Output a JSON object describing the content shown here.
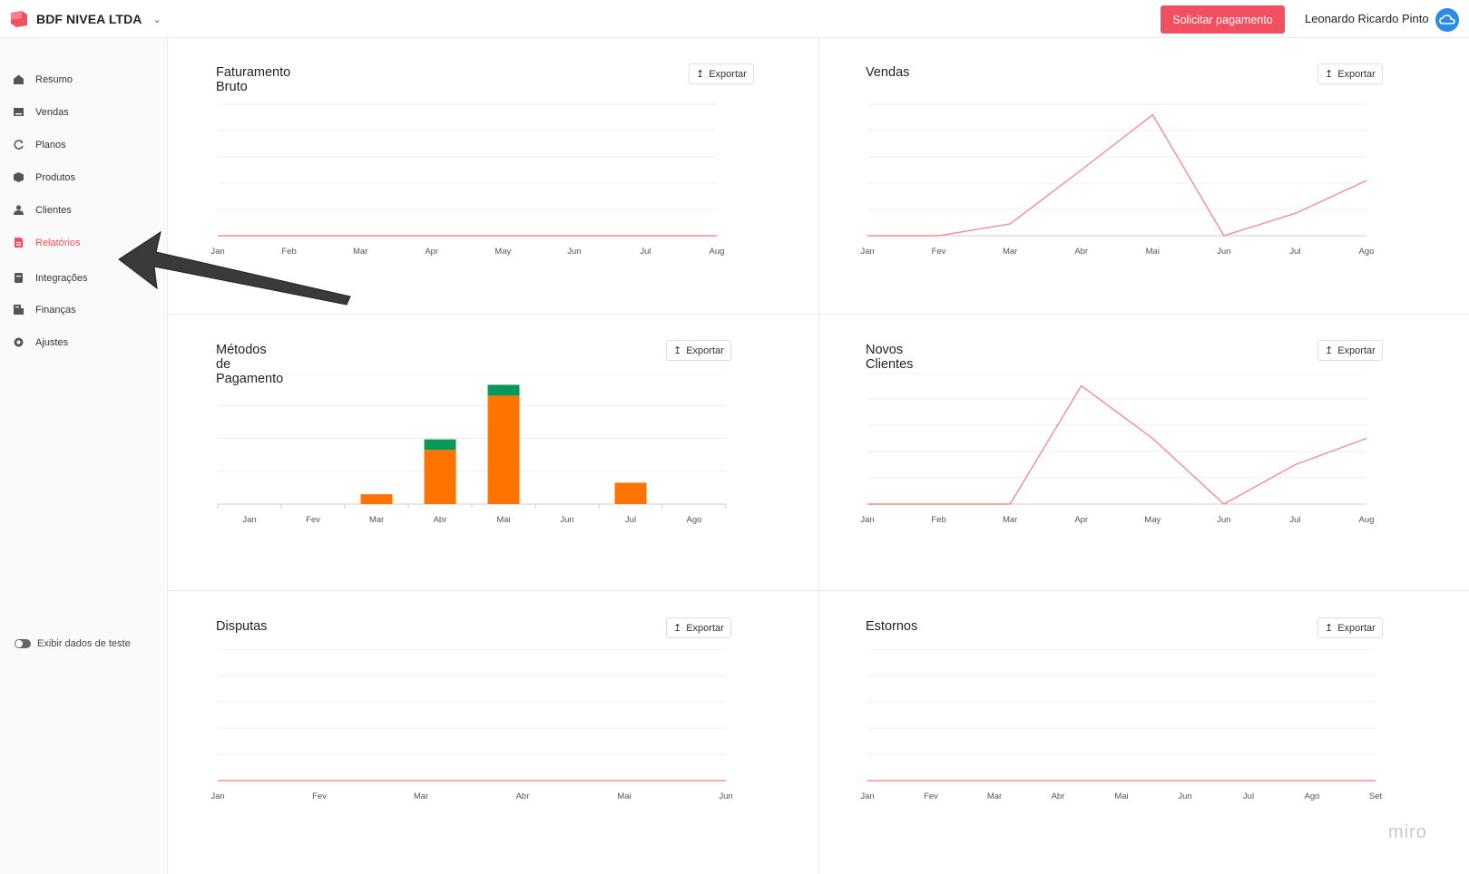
{
  "header": {
    "company": "BDF NIVEA LTDA",
    "request_button": "Solicitar pagamento",
    "user_name": "Leonardo Ricardo Pinto"
  },
  "sidebar": {
    "items": [
      {
        "label": "Resumo",
        "icon": "home-icon"
      },
      {
        "label": "Vendas",
        "icon": "sales-icon"
      },
      {
        "label": "Planos",
        "icon": "refresh-icon"
      },
      {
        "label": "Produtos",
        "icon": "box-icon"
      },
      {
        "label": "Clientes",
        "icon": "users-icon"
      },
      {
        "label": "Relatórios",
        "icon": "report-icon",
        "active": true
      },
      {
        "label": "Integrações",
        "icon": "integration-icon"
      },
      {
        "label": "Finanças",
        "icon": "finance-icon"
      },
      {
        "label": "Ajustes",
        "icon": "settings-icon"
      }
    ],
    "test_toggle_label": "Exibir dados de teste"
  },
  "export_label": "Exportar",
  "colors": {
    "accent": "#f25060",
    "line": "#f98c8c",
    "bar_orange": "#ff7300",
    "bar_green": "#0a9858"
  },
  "watermark": "miro",
  "chart_data": [
    {
      "id": "faturamento",
      "type": "line",
      "title": "Faturamento Bruto",
      "categories": [
        "Jan",
        "Feb",
        "Mar",
        "Apr",
        "May",
        "Jun",
        "Jul",
        "Aug"
      ],
      "series": [
        {
          "values": [
            0,
            0,
            0,
            0,
            0,
            0,
            0,
            0
          ]
        }
      ],
      "ylim": [
        0,
        5
      ],
      "grid": true
    },
    {
      "id": "vendas",
      "type": "line",
      "title": "Vendas",
      "categories": [
        "Jan",
        "Fev",
        "Mar",
        "Abr",
        "Mai",
        "Jun",
        "Jul",
        "Ago"
      ],
      "series": [
        {
          "values": [
            0,
            0,
            0.45,
            2.5,
            4.6,
            0,
            0.85,
            2.1
          ]
        }
      ],
      "ylim": [
        0,
        5
      ],
      "grid": true
    },
    {
      "id": "metodos",
      "type": "bar",
      "title": "Métodos de Pagamento",
      "categories": [
        "Jan",
        "Fev",
        "Mar",
        "Abr",
        "Mai",
        "Jun",
        "Jul",
        "Ago"
      ],
      "series": [
        {
          "values": [
            0,
            0,
            0.3,
            1.65,
            3.3,
            0,
            0.65,
            0
          ]
        },
        {
          "values": [
            0,
            0,
            0,
            0.32,
            0.33,
            0,
            0,
            0
          ]
        }
      ],
      "ylim": [
        0,
        4
      ],
      "grid": true
    },
    {
      "id": "novos",
      "type": "line",
      "title": "Novos Clientes",
      "categories": [
        "Jan",
        "Feb",
        "Mar",
        "Apr",
        "May",
        "Jun",
        "Jul",
        "Aug"
      ],
      "series": [
        {
          "values": [
            0,
            0,
            0,
            4.5,
            2.5,
            0,
            1.5,
            2.5
          ]
        }
      ],
      "ylim": [
        0,
        5
      ],
      "grid": true
    },
    {
      "id": "disputas",
      "type": "line",
      "title": "Disputas",
      "categories": [
        "Jan",
        "Fev",
        "Mar",
        "Abr",
        "Mai",
        "Jun"
      ],
      "series": [
        {
          "values": [
            0,
            0,
            0,
            0,
            0,
            0
          ]
        }
      ],
      "ylim": [
        0,
        5
      ],
      "grid": true
    },
    {
      "id": "estornos",
      "type": "line",
      "title": "Estornos",
      "categories": [
        "Jan",
        "Fev",
        "Mar",
        "Abr",
        "Mai",
        "Jun",
        "Jul",
        "Ago",
        "Set"
      ],
      "series": [
        {
          "values": [
            0,
            0,
            0,
            0,
            0,
            0,
            0,
            0,
            0
          ]
        }
      ],
      "ylim": [
        0,
        5
      ],
      "grid": true
    }
  ]
}
